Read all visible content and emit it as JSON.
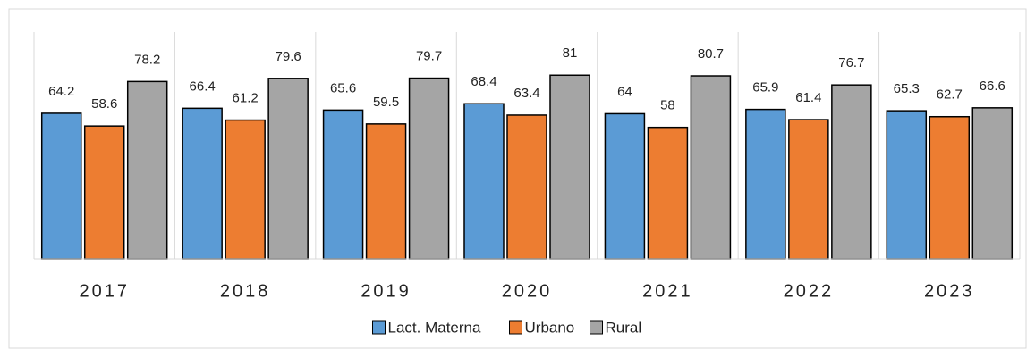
{
  "chart_data": {
    "type": "bar",
    "categories": [
      "2017",
      "2018",
      "2019",
      "2020",
      "2021",
      "2022",
      "2023"
    ],
    "series": [
      {
        "name": "Lact. Materna",
        "color": "#5b9bd5",
        "values": [
          64.2,
          66.4,
          65.6,
          68.4,
          64,
          65.9,
          65.3
        ]
      },
      {
        "name": "Urbano",
        "color": "#ed7d31",
        "values": [
          58.6,
          61.2,
          59.5,
          63.4,
          58,
          61.4,
          62.7
        ]
      },
      {
        "name": "Rural",
        "color": "#a5a5a5",
        "values": [
          78.2,
          79.6,
          79.7,
          81,
          80.7,
          76.7,
          66.6
        ]
      }
    ],
    "ylim": [
      0,
      100
    ],
    "legend": "bottom"
  }
}
